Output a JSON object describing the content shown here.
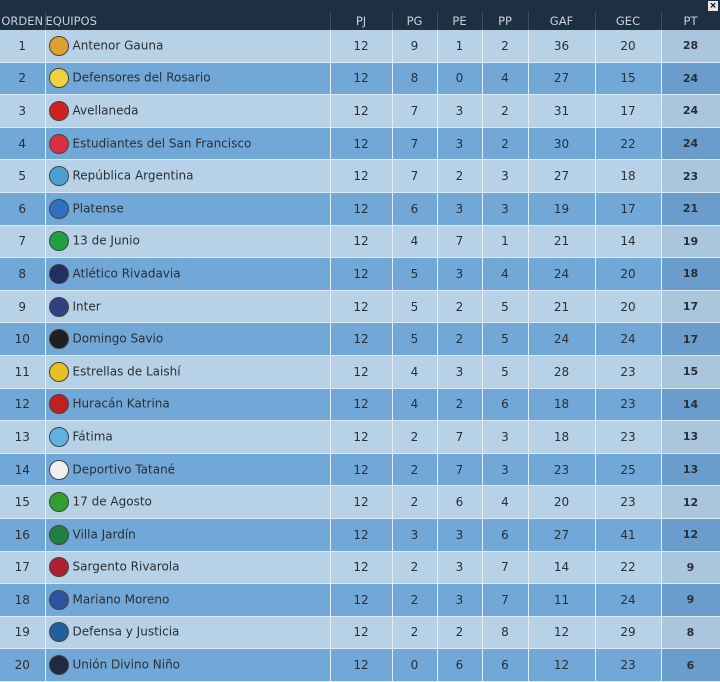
{
  "table": {
    "columns": [
      "ORDEN",
      "EQUIPOS",
      "PJ",
      "PG",
      "PE",
      "PP",
      "GAF",
      "GEC",
      "PT"
    ],
    "rows": [
      [
        1,
        "Antenor Gauna",
        12,
        9,
        1,
        2,
        36,
        20,
        28
      ],
      [
        2,
        "Defensores del Rosario",
        12,
        8,
        0,
        4,
        27,
        15,
        24
      ],
      [
        3,
        "Avellaneda",
        12,
        7,
        3,
        2,
        31,
        17,
        24
      ],
      [
        4,
        "Estudiantes del San Francisco",
        12,
        7,
        3,
        2,
        30,
        22,
        24
      ],
      [
        5,
        "República Argentina",
        12,
        7,
        2,
        3,
        27,
        18,
        23
      ],
      [
        6,
        "Platense",
        12,
        6,
        3,
        3,
        19,
        17,
        21
      ],
      [
        7,
        "13 de Junio",
        12,
        4,
        7,
        1,
        21,
        14,
        19
      ],
      [
        8,
        "Atlético Rivadavia",
        12,
        5,
        3,
        4,
        24,
        20,
        18
      ],
      [
        9,
        "Inter",
        12,
        5,
        2,
        5,
        21,
        20,
        17
      ],
      [
        10,
        "Domingo Savio",
        12,
        5,
        2,
        5,
        24,
        24,
        17
      ],
      [
        11,
        "Estrellas de Laishí",
        12,
        4,
        3,
        5,
        28,
        23,
        15
      ],
      [
        12,
        "Huracán Katrina",
        12,
        4,
        2,
        6,
        18,
        23,
        14
      ],
      [
        13,
        "Fátima",
        12,
        2,
        7,
        3,
        18,
        23,
        13
      ],
      [
        14,
        "Deportivo Tatané",
        12,
        2,
        7,
        3,
        23,
        25,
        13
      ],
      [
        15,
        "17 de Agosto",
        12,
        2,
        6,
        4,
        20,
        23,
        12
      ],
      [
        16,
        "Villa Jardín",
        12,
        3,
        3,
        6,
        27,
        41,
        12
      ],
      [
        17,
        "Sargento Rivarola",
        12,
        2,
        3,
        7,
        14,
        22,
        9
      ],
      [
        18,
        "Mariano Moreno",
        12,
        2,
        3,
        7,
        11,
        24,
        9
      ],
      [
        19,
        "Defensa y Justicia",
        12,
        2,
        2,
        8,
        12,
        29,
        8
      ],
      [
        20,
        "Unión Divino Niño",
        12,
        0,
        6,
        6,
        12,
        23,
        6
      ]
    ]
  }
}
